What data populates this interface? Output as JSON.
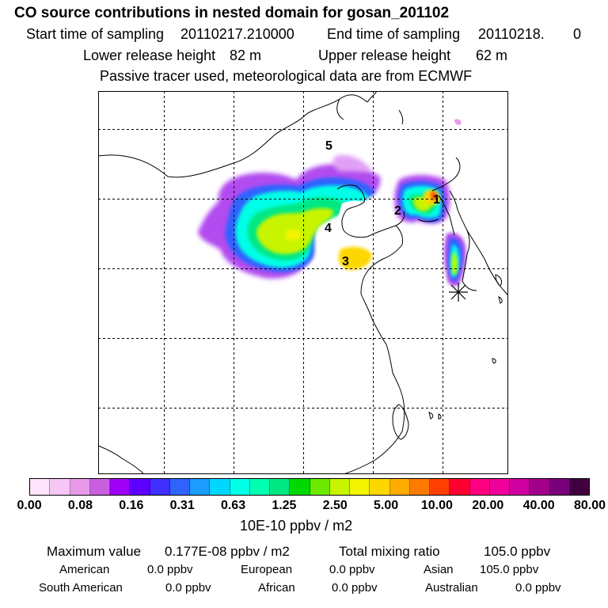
{
  "header": {
    "title": "CO  source contributions in nested domain for gosan_201102",
    "start_label": "Start time of sampling",
    "start_value": "20110217.210000",
    "end_label": "End time of sampling",
    "end_value": "20110218.",
    "end_extra": "0",
    "lower_label": "Lower release height",
    "lower_value": "82 m",
    "upper_label": "Upper release height",
    "upper_value": "62 m",
    "note": "Passive tracer used, meteorological data are from ECMWF"
  },
  "map": {
    "region_labels": [
      "1",
      "2",
      "3",
      "4",
      "5"
    ],
    "receptor_marker": "star-marker"
  },
  "colorbar": {
    "colors": [
      "#fde4fb",
      "#f6c6f4",
      "#e99ae9",
      "#c75fe0",
      "#9e00f5",
      "#5e00ff",
      "#4030ff",
      "#2f63ff",
      "#1c9cff",
      "#00d7ff",
      "#00ffe7",
      "#00ffb0",
      "#00e884",
      "#00d900",
      "#6bea00",
      "#c8f400",
      "#f4f400",
      "#ffd700",
      "#ffab00",
      "#ff7b00",
      "#ff4000",
      "#ff0033",
      "#ff0080",
      "#f0009b",
      "#d000a0",
      "#a0008a",
      "#78007a",
      "#400040"
    ],
    "tick_labels": [
      "0.00",
      "0.08",
      "0.16",
      "0.31",
      "0.63",
      "1.25",
      "2.50",
      "5.00",
      "10.00",
      "20.00",
      "40.00",
      "80.00"
    ],
    "unit": "10E-10 ppbv / m2"
  },
  "stats": {
    "max_label": "Maximum value",
    "max_value": "0.177E-08 ppbv / m2",
    "total_label": "Total mixing ratio",
    "total_value": "105.0 ppbv",
    "american_label": "American",
    "american_value": "0.0 ppbv",
    "european_label": "European",
    "european_value": "0.0 ppbv",
    "asian_label": "Asian",
    "asian_value": "105.0 ppbv",
    "south_american_label": "South American",
    "south_american_value": "0.0 ppbv",
    "african_label": "African",
    "african_value": "0.0 ppbv",
    "australian_label": "Australian",
    "australian_value": "0.0 ppbv"
  }
}
